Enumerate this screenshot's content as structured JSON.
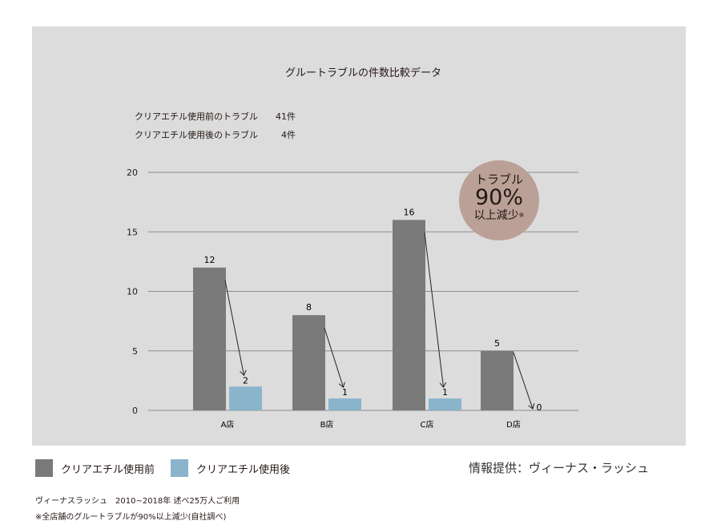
{
  "chart_data": {
    "type": "bar",
    "title": "グルートラブルの件数比較データ",
    "categories": [
      "A店",
      "B店",
      "C店",
      "D店"
    ],
    "series": [
      {
        "name": "クリアエチル使用前",
        "values": [
          12,
          8,
          16,
          5
        ],
        "color": "#7a7a7a"
      },
      {
        "name": "クリアエチル使用後",
        "values": [
          2,
          1,
          1,
          0
        ],
        "color": "#89b4cc"
      }
    ],
    "yticks": [
      0,
      5,
      10,
      15,
      20
    ],
    "ylim": [
      0,
      20
    ],
    "grid": true,
    "legend": "bottom-left",
    "annotations": [
      "arrows from before to after values"
    ]
  },
  "summary": [
    {
      "label": "クリアエチル使用前のトラブル",
      "value": "41件"
    },
    {
      "label": "クリアエチル使用後のトラブル",
      "value": "4件"
    }
  ],
  "badge": {
    "line1": "トラブル",
    "line2": "90%",
    "line3": "以上減少",
    "mark": "※",
    "color": "#bba097"
  },
  "credit": "情報提供：ヴィーナス・ラッシュ",
  "footnotes": [
    "ヴィーナスラッシュ　2010~2018年  述べ25万人ご利用",
    "※全店舗のグルートラブルが90%以上減少(自社調べ)"
  ]
}
